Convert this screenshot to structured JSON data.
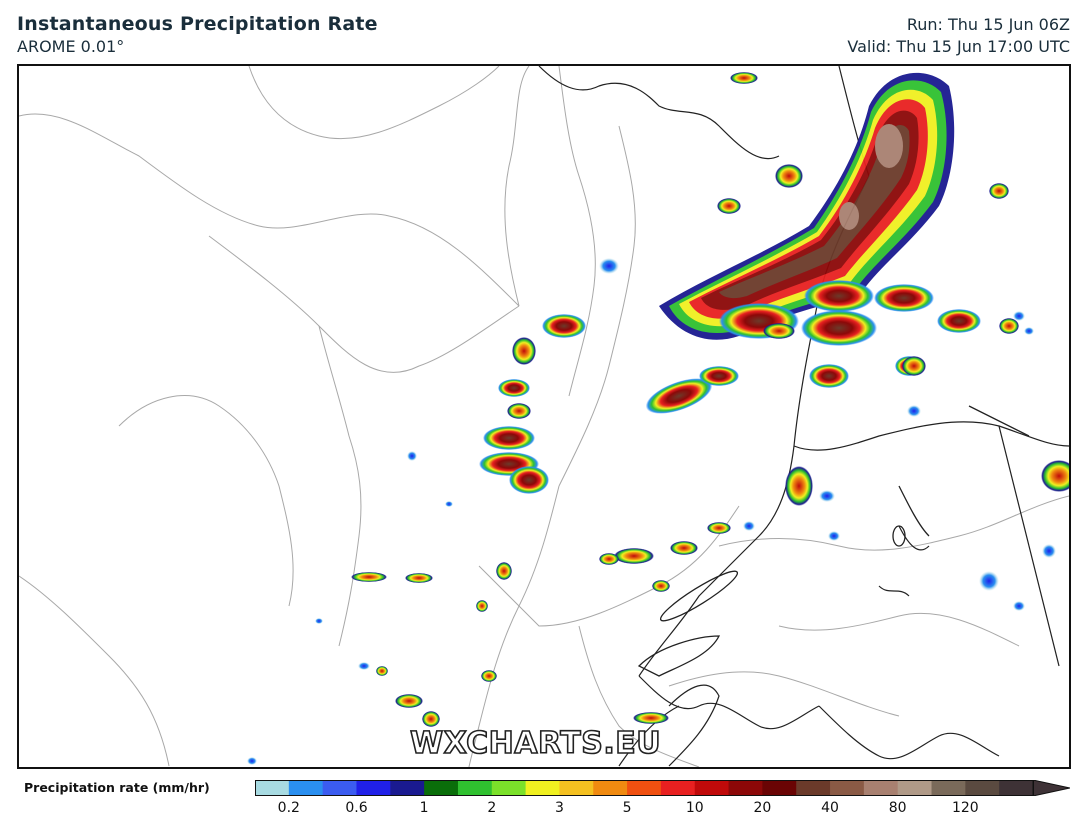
{
  "header": {
    "title": "Instantaneous Precipitation Rate",
    "model": "AROME 0.01°",
    "run": "Run: Thu 15 Jun 06Z",
    "valid": "Valid: Thu 15 Jun 17:00 UTC"
  },
  "watermark": "WXCHARTS.EU",
  "legend": {
    "label": "Precipitation rate (mm/hr)",
    "colors": [
      "#a8dbe2",
      "#2a8ff0",
      "#3b5cf0",
      "#2020e8",
      "#1a1a90",
      "#0a6e0a",
      "#2fc02f",
      "#7be02a",
      "#f0f020",
      "#f4c020",
      "#f08a10",
      "#f05010",
      "#e82020",
      "#c00a0a",
      "#8c0808",
      "#6a0404",
      "#6b3a2a",
      "#8a5a45",
      "#a88070",
      "#b09a88",
      "#7a6a5a",
      "#5a4a40",
      "#3e3236"
    ],
    "ticks": [
      "0.2",
      "0.6",
      "1",
      "2",
      "3",
      "5",
      "10",
      "20",
      "40",
      "80",
      "120"
    ]
  }
}
